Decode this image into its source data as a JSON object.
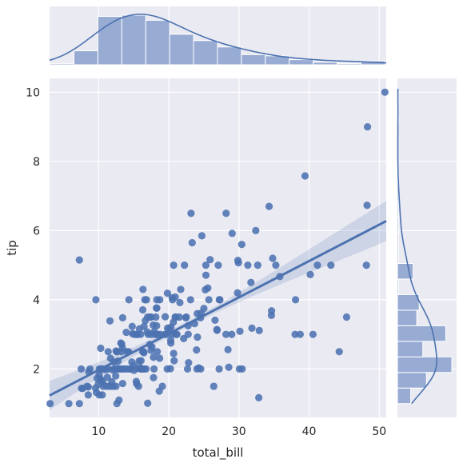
{
  "chart_data": {
    "type": "scatter",
    "title": "",
    "xlabel": "total_bill",
    "ylabel": "tip",
    "xlim": [
      3,
      51
    ],
    "ylim": [
      0.6,
      10.4
    ],
    "xticks": [
      10,
      20,
      30,
      40,
      50
    ],
    "yticks": [
      2,
      4,
      6,
      8,
      10
    ],
    "grid": true,
    "background": "#eaeaf2",
    "color": "#4c72b0",
    "fill_color": "#98abd3",
    "points": [
      [
        3.07,
        1.0
      ],
      [
        5.75,
        1.0
      ],
      [
        7.25,
        1.0
      ],
      [
        7.25,
        5.15
      ],
      [
        7.51,
        2.0
      ],
      [
        7.56,
        1.44
      ],
      [
        7.74,
        1.44
      ],
      [
        8.35,
        1.5
      ],
      [
        8.51,
        1.25
      ],
      [
        8.52,
        1.48
      ],
      [
        8.58,
        1.92
      ],
      [
        8.77,
        2.0
      ],
      [
        9.55,
        1.45
      ],
      [
        9.6,
        4.0
      ],
      [
        9.68,
        1.32
      ],
      [
        9.78,
        1.73
      ],
      [
        9.94,
        1.56
      ],
      [
        10.07,
        1.25
      ],
      [
        10.07,
        1.83
      ],
      [
        10.09,
        2.0
      ],
      [
        10.27,
        1.71
      ],
      [
        10.29,
        2.6
      ],
      [
        10.33,
        1.67
      ],
      [
        10.33,
        2.0
      ],
      [
        10.34,
        2.0
      ],
      [
        10.34,
        1.66
      ],
      [
        10.51,
        1.25
      ],
      [
        10.59,
        1.61
      ],
      [
        10.63,
        2.0
      ],
      [
        10.65,
        1.5
      ],
      [
        11.02,
        1.98
      ],
      [
        11.17,
        1.5
      ],
      [
        11.24,
        1.76
      ],
      [
        11.35,
        2.5
      ],
      [
        11.38,
        2.0
      ],
      [
        11.59,
        1.5
      ],
      [
        11.61,
        3.39
      ],
      [
        11.69,
        2.31
      ],
      [
        11.87,
        1.63
      ],
      [
        12.02,
        1.97
      ],
      [
        12.03,
        1.5
      ],
      [
        12.16,
        2.2
      ],
      [
        12.26,
        2.0
      ],
      [
        12.43,
        1.8
      ],
      [
        12.46,
        1.5
      ],
      [
        12.48,
        2.52
      ],
      [
        12.54,
        2.5
      ],
      [
        12.6,
        1.0
      ],
      [
        12.66,
        2.5
      ],
      [
        12.69,
        2.0
      ],
      [
        12.74,
        2.01
      ],
      [
        12.76,
        2.23
      ],
      [
        12.9,
        1.1
      ],
      [
        13.0,
        2.0
      ],
      [
        13.03,
        2.0
      ],
      [
        13.13,
        2.0
      ],
      [
        13.16,
        2.75
      ],
      [
        13.27,
        2.5
      ],
      [
        13.28,
        2.72
      ],
      [
        13.37,
        2.0
      ],
      [
        13.39,
        2.61
      ],
      [
        13.42,
        1.58
      ],
      [
        13.42,
        3.48
      ],
      [
        13.51,
        2.0
      ],
      [
        13.81,
        2.0
      ],
      [
        13.94,
        3.06
      ],
      [
        14.07,
        2.5
      ],
      [
        14.15,
        2.0
      ],
      [
        14.26,
        2.5
      ],
      [
        14.31,
        4.0
      ],
      [
        14.48,
        2.0
      ],
      [
        14.52,
        2.0
      ],
      [
        14.73,
        2.2
      ],
      [
        14.78,
        3.23
      ],
      [
        14.83,
        3.02
      ],
      [
        15.01,
        2.09
      ],
      [
        15.04,
        1.96
      ],
      [
        15.06,
        3.0
      ],
      [
        15.36,
        1.64
      ],
      [
        15.38,
        3.0
      ],
      [
        15.42,
        1.57
      ],
      [
        15.48,
        2.02
      ],
      [
        15.53,
        3.0
      ],
      [
        15.69,
        1.5
      ],
      [
        15.77,
        2.23
      ],
      [
        15.81,
        3.16
      ],
      [
        15.95,
        2.0
      ],
      [
        15.98,
        2.03
      ],
      [
        15.98,
        3.0
      ],
      [
        16.0,
        2.0
      ],
      [
        16.04,
        2.24
      ],
      [
        16.21,
        2.0
      ],
      [
        16.27,
        2.5
      ],
      [
        16.29,
        3.71
      ],
      [
        16.31,
        2.0
      ],
      [
        16.32,
        4.3
      ],
      [
        16.4,
        2.5
      ],
      [
        16.45,
        2.47
      ],
      [
        16.47,
        3.23
      ],
      [
        16.49,
        2.0
      ],
      [
        16.58,
        4.0
      ],
      [
        16.66,
        3.4
      ],
      [
        16.76,
        2.0
      ],
      [
        16.82,
        4.0
      ],
      [
        16.93,
        3.07
      ],
      [
        16.97,
        3.5
      ],
      [
        16.99,
        1.01
      ],
      [
        17.07,
        3.0
      ],
      [
        17.29,
        2.71
      ],
      [
        17.31,
        3.5
      ],
      [
        17.46,
        2.54
      ],
      [
        17.47,
        3.5
      ],
      [
        17.51,
        3.0
      ],
      [
        17.59,
        2.64
      ],
      [
        17.78,
        3.27
      ],
      [
        17.81,
        2.34
      ],
      [
        17.82,
        1.75
      ],
      [
        17.89,
        2.0
      ],
      [
        17.92,
        3.08
      ],
      [
        18.04,
        3.0
      ],
      [
        18.15,
        3.5
      ],
      [
        18.24,
        3.76
      ],
      [
        18.26,
        3.25
      ],
      [
        18.28,
        4.0
      ],
      [
        18.29,
        3.0
      ],
      [
        18.29,
        3.76
      ],
      [
        18.35,
        2.5
      ],
      [
        18.43,
        3.0
      ],
      [
        18.64,
        1.36
      ],
      [
        18.69,
        2.31
      ],
      [
        18.71,
        4.0
      ],
      [
        18.78,
        3.0
      ],
      [
        19.08,
        1.5
      ],
      [
        19.44,
        3.0
      ],
      [
        19.49,
        3.51
      ],
      [
        19.65,
        3.0
      ],
      [
        19.77,
        2.0
      ],
      [
        19.81,
        4.19
      ],
      [
        19.82,
        3.18
      ],
      [
        20.08,
        3.15
      ],
      [
        20.23,
        2.01
      ],
      [
        20.27,
        2.83
      ],
      [
        20.29,
        2.75
      ],
      [
        20.29,
        3.21
      ],
      [
        20.45,
        3.0
      ],
      [
        20.49,
        4.06
      ],
      [
        20.53,
        4.0
      ],
      [
        20.65,
        3.35
      ],
      [
        20.69,
        2.45
      ],
      [
        20.69,
        5.0
      ],
      [
        20.76,
        2.24
      ],
      [
        20.9,
        3.5
      ],
      [
        20.92,
        4.08
      ],
      [
        21.01,
        3.5
      ],
      [
        21.01,
        3.0
      ],
      [
        21.16,
        3.0
      ],
      [
        21.5,
        3.5
      ],
      [
        21.58,
        3.92
      ],
      [
        21.7,
        4.3
      ],
      [
        22.12,
        2.88
      ],
      [
        22.23,
        5.0
      ],
      [
        22.42,
        3.48
      ],
      [
        22.49,
        3.5
      ],
      [
        22.67,
        2.0
      ],
      [
        22.75,
        3.25
      ],
      [
        22.76,
        3.0
      ],
      [
        22.82,
        2.18
      ],
      [
        23.1,
        4.0
      ],
      [
        23.17,
        6.5
      ],
      [
        23.33,
        5.65
      ],
      [
        23.68,
        3.31
      ],
      [
        23.95,
        2.55
      ],
      [
        24.01,
        2.0
      ],
      [
        24.06,
        3.6
      ],
      [
        24.08,
        2.92
      ],
      [
        24.27,
        2.03
      ],
      [
        24.52,
        3.48
      ],
      [
        24.55,
        2.0
      ],
      [
        24.59,
        3.61
      ],
      [
        24.71,
        5.85
      ],
      [
        25.0,
        3.75
      ],
      [
        25.21,
        4.29
      ],
      [
        25.28,
        5.0
      ],
      [
        25.29,
        4.71
      ],
      [
        25.56,
        4.34
      ],
      [
        25.71,
        4.0
      ],
      [
        25.89,
        5.16
      ],
      [
        26.41,
        1.5
      ],
      [
        26.59,
        3.41
      ],
      [
        26.86,
        3.14
      ],
      [
        26.88,
        3.12
      ],
      [
        27.05,
        5.0
      ],
      [
        27.18,
        2.0
      ],
      [
        27.2,
        4.0
      ],
      [
        27.28,
        4.0
      ],
      [
        28.15,
        3.0
      ],
      [
        28.17,
        6.5
      ],
      [
        28.44,
        2.56
      ],
      [
        28.55,
        2.05
      ],
      [
        28.97,
        3.0
      ],
      [
        29.03,
        5.92
      ],
      [
        29.8,
        4.2
      ],
      [
        29.85,
        5.14
      ],
      [
        29.93,
        5.07
      ],
      [
        30.06,
        2.0
      ],
      [
        30.14,
        3.09
      ],
      [
        30.4,
        5.6
      ],
      [
        30.46,
        2.0
      ],
      [
        31.27,
        5.0
      ],
      [
        31.71,
        4.5
      ],
      [
        31.85,
        3.18
      ],
      [
        32.4,
        6.0
      ],
      [
        32.68,
        5.0
      ],
      [
        32.83,
        1.17
      ],
      [
        32.9,
        3.11
      ],
      [
        34.3,
        6.7
      ],
      [
        34.63,
        3.55
      ],
      [
        34.65,
        3.68
      ],
      [
        34.81,
        5.2
      ],
      [
        35.26,
        5.0
      ],
      [
        35.83,
        4.67
      ],
      [
        38.01,
        3.0
      ],
      [
        38.07,
        4.0
      ],
      [
        38.73,
        3.0
      ],
      [
        39.42,
        7.58
      ],
      [
        40.17,
        4.73
      ],
      [
        40.55,
        3.0
      ],
      [
        41.19,
        5.0
      ],
      [
        43.11,
        5.0
      ],
      [
        44.3,
        2.5
      ],
      [
        45.35,
        3.5
      ],
      [
        48.17,
        5.0
      ],
      [
        48.27,
        6.73
      ],
      [
        48.33,
        9.0
      ],
      [
        50.81,
        10.0
      ]
    ],
    "regression": {
      "intercept": 0.92,
      "slope": 0.105,
      "ci_halfwidth": [
        0.42,
        0.28,
        0.17,
        0.1,
        0.08,
        0.1,
        0.17,
        0.26,
        0.37,
        0.48,
        0.58
      ]
    },
    "marginal_x": {
      "bin_edges": [
        3.07,
        6.48,
        9.89,
        13.3,
        16.71,
        20.12,
        23.53,
        26.94,
        30.35,
        33.76,
        37.17,
        40.58,
        43.99,
        47.4,
        50.81
      ],
      "counts": [
        1,
        11,
        38,
        39,
        35,
        24,
        19,
        14,
        8,
        7,
        4,
        2,
        1,
        3
      ]
    },
    "marginal_y": {
      "bin_edges": [
        1.0,
        1.45,
        1.9,
        2.35,
        2.8,
        3.25,
        3.7,
        4.15,
        4.6,
        5.05,
        5.5,
        5.95,
        6.4,
        6.85,
        7.3,
        7.75,
        8.2,
        8.65,
        9.1,
        9.55,
        10.0
      ],
      "counts": [
        11,
        24,
        45,
        21,
        40,
        16,
        18,
        1,
        13,
        1,
        1,
        1,
        1,
        1,
        1,
        0,
        0,
        0,
        1,
        1
      ]
    }
  }
}
